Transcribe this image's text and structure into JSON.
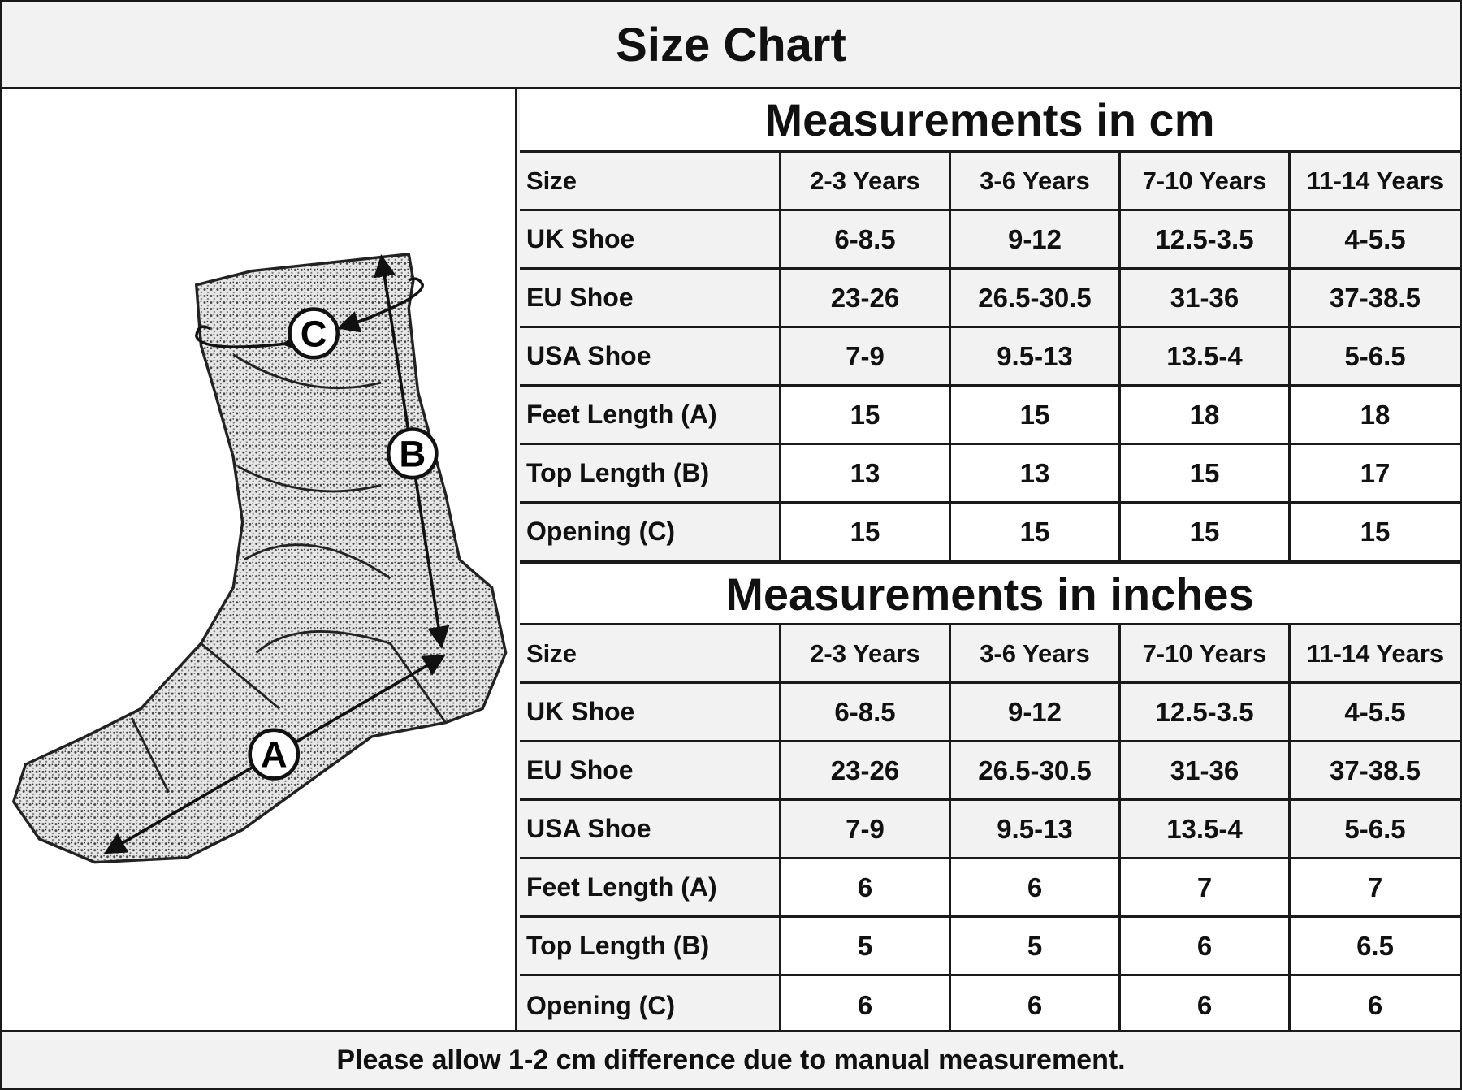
{
  "title": "Size Chart",
  "illustration": {
    "labels": {
      "a": "A",
      "b": "B",
      "c": "C"
    }
  },
  "tables": [
    {
      "heading": "Measurements in cm",
      "header": [
        "Size",
        "2-3 Years",
        "3-6 Years",
        "7-10 Years",
        "11-14 Years"
      ],
      "rows": [
        [
          "UK Shoe",
          "6-8.5",
          "9-12",
          "12.5-3.5",
          "4-5.5"
        ],
        [
          "EU Shoe",
          "23-26",
          "26.5-30.5",
          "31-36",
          "37-38.5"
        ],
        [
          "USA Shoe",
          "7-9",
          "9.5-13",
          "13.5-4",
          "5-6.5"
        ],
        [
          "Feet Length (A)",
          "15",
          "15",
          "18",
          "18"
        ],
        [
          "Top Length (B)",
          "13",
          "13",
          "15",
          "17"
        ],
        [
          "Opening (C)",
          "15",
          "15",
          "15",
          "15"
        ]
      ]
    },
    {
      "heading": "Measurements in inches",
      "header": [
        "Size",
        "2-3 Years",
        "3-6 Years",
        "7-10 Years",
        "11-14 Years"
      ],
      "rows": [
        [
          "UK Shoe",
          "6-8.5",
          "9-12",
          "12.5-3.5",
          "4-5.5"
        ],
        [
          "EU Shoe",
          "23-26",
          "26.5-30.5",
          "31-36",
          "37-38.5"
        ],
        [
          "USA Shoe",
          "7-9",
          "9.5-13",
          "13.5-4",
          "5-6.5"
        ],
        [
          "Feet Length (A)",
          "6",
          "6",
          "7",
          "7"
        ],
        [
          "Top Length (B)",
          "5",
          "5",
          "6",
          "6.5"
        ],
        [
          "Opening (C)",
          "6",
          "6",
          "6",
          "6"
        ]
      ]
    }
  ],
  "footer": "Please allow 1-2 cm difference due to manual measurement."
}
